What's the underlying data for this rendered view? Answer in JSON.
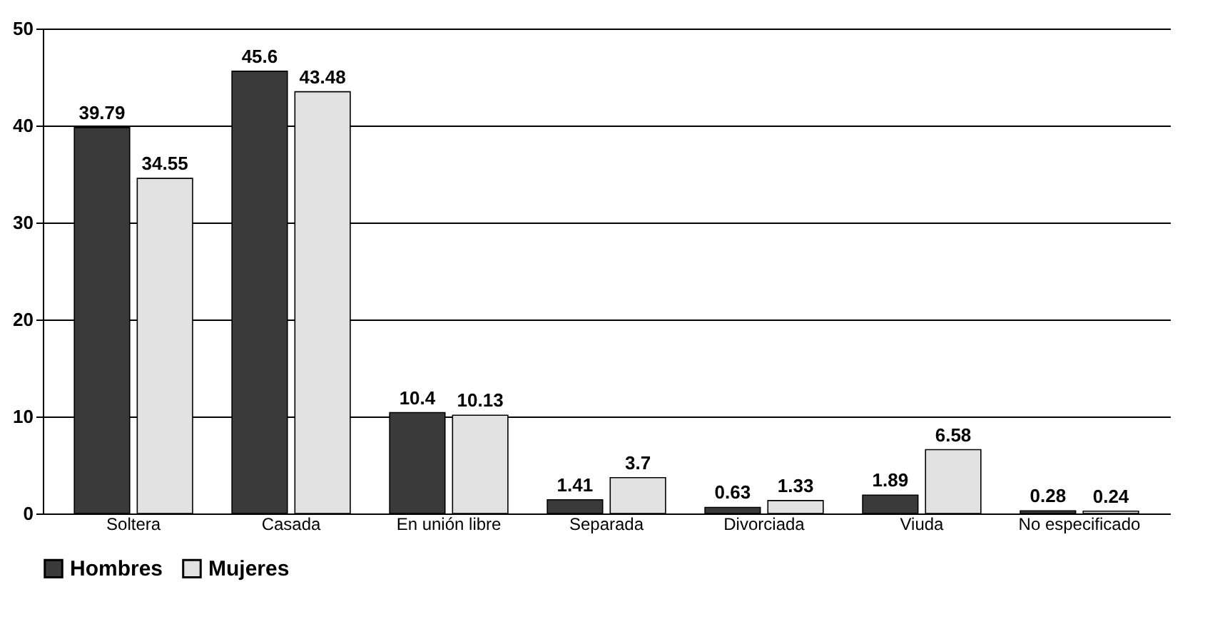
{
  "chart_data": {
    "type": "bar",
    "categories": [
      "Soltera",
      "Casada",
      "En unión libre",
      "Separada",
      "Divorciada",
      "Viuda",
      "No especificado"
    ],
    "series": [
      {
        "name": "Hombres",
        "color": "#3a3a3a",
        "values": [
          39.79,
          45.6,
          10.4,
          1.41,
          0.63,
          1.89,
          0.28
        ]
      },
      {
        "name": "Mujeres",
        "color": "#e2e2e2",
        "values": [
          34.55,
          43.48,
          10.13,
          3.7,
          1.33,
          6.58,
          0.24
        ]
      }
    ],
    "ylim": [
      0,
      50
    ],
    "yticks": [
      0,
      10,
      20,
      30,
      40,
      50
    ],
    "grid": "y",
    "legend": "bottom",
    "data_labels": true
  }
}
